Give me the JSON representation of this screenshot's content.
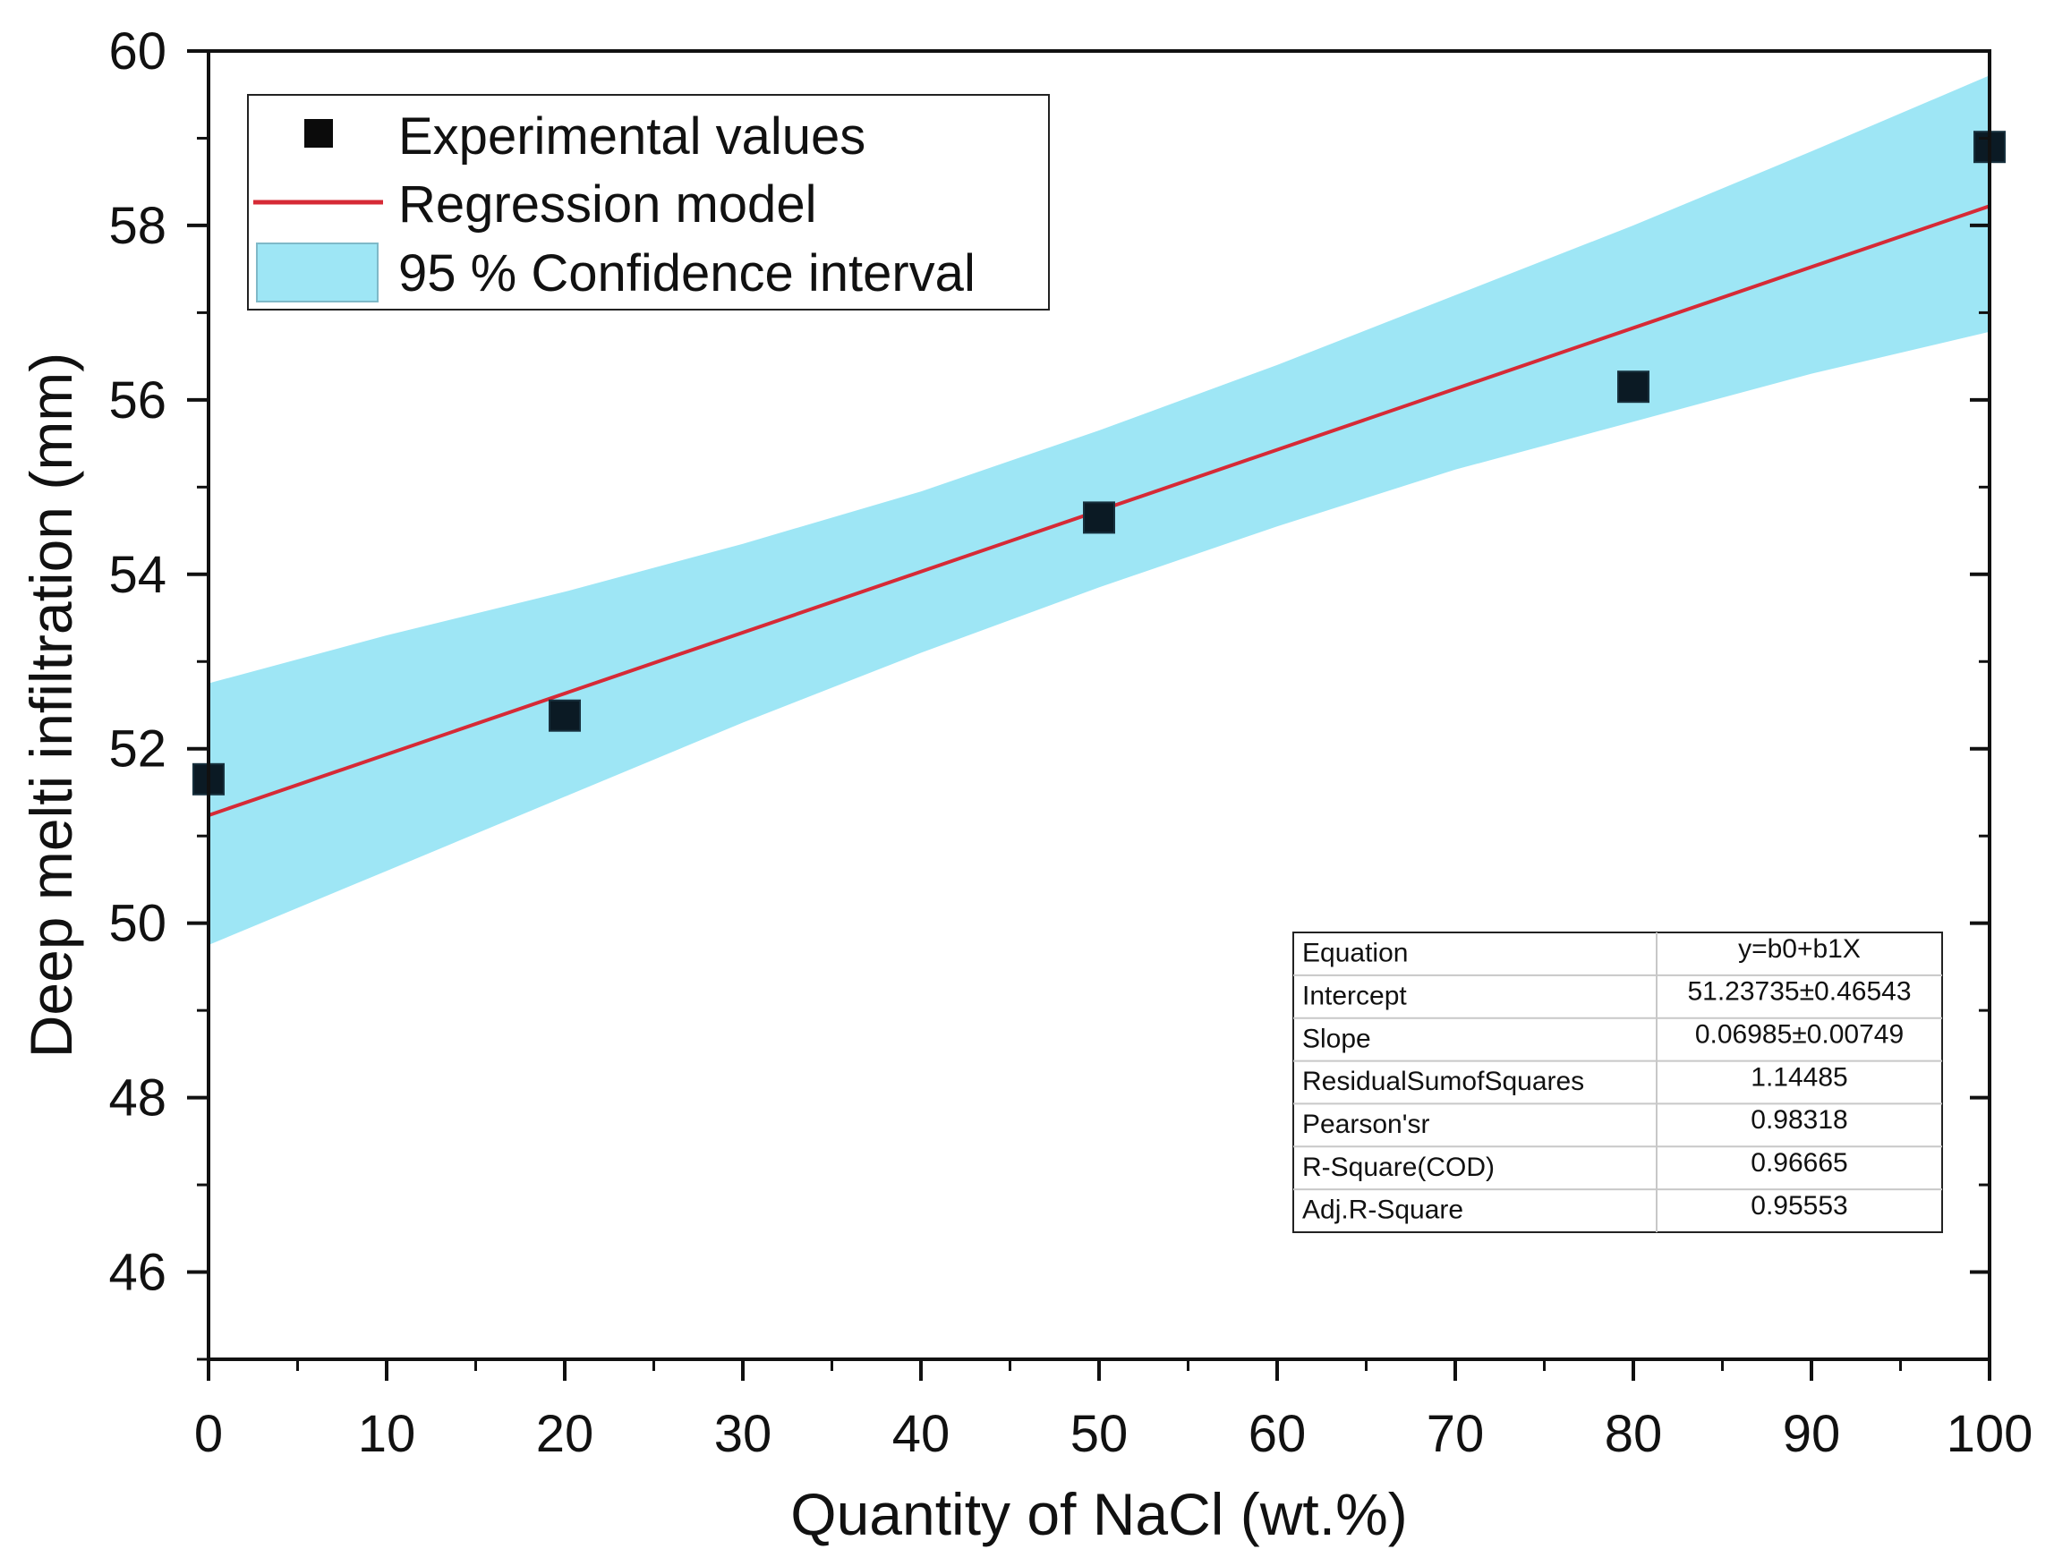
{
  "chart_data": {
    "type": "scatter",
    "title": "",
    "xlabel": "Quantity of NaCl (wt.%)",
    "ylabel": "Deep melti infiltration (mm)",
    "xlim": [
      0,
      100
    ],
    "ylim": [
      45,
      60
    ],
    "x_ticks": [
      0,
      10,
      20,
      30,
      40,
      50,
      60,
      70,
      80,
      90,
      100
    ],
    "x_tick_labels": [
      "0",
      "10",
      "20",
      "30",
      "40",
      "50",
      "60",
      "70",
      "80",
      "90",
      "100"
    ],
    "y_ticks": [
      46,
      48,
      50,
      52,
      54,
      56,
      58,
      60
    ],
    "y_tick_labels": [
      "46",
      "48",
      "50",
      "52",
      "54",
      "56",
      "58",
      "60"
    ],
    "grid": false,
    "legend_position": "top-left",
    "series": [
      {
        "name": "Experimental values",
        "kind": "scatter",
        "color": "#0b1a24",
        "x": [
          0,
          20,
          50,
          80,
          100
        ],
        "y": [
          51.65,
          52.38,
          54.65,
          56.15,
          58.9
        ]
      },
      {
        "name": "Regression model",
        "kind": "line",
        "color": "#d62a36",
        "x": [
          0,
          100
        ],
        "y": [
          51.23735,
          58.22235
        ]
      },
      {
        "name": "95 % Confidence interval",
        "kind": "band",
        "color": "#9ee6f5",
        "x": [
          0,
          10,
          20,
          30,
          40,
          50,
          60,
          70,
          80,
          90,
          100
        ],
        "lower": [
          49.75,
          50.6,
          51.45,
          52.3,
          53.1,
          53.85,
          54.55,
          55.2,
          55.75,
          56.3,
          56.78
        ],
        "upper": [
          52.75,
          53.3,
          53.8,
          54.35,
          54.95,
          55.65,
          56.4,
          57.2,
          58.0,
          58.85,
          59.72
        ]
      }
    ],
    "legend": [
      {
        "label": "Experimental values",
        "symbol": "square"
      },
      {
        "label": "Regression model",
        "symbol": "line"
      },
      {
        "label": "95 % Confidence interval",
        "symbol": "band"
      }
    ],
    "stats_table": [
      [
        "Equation",
        "y=b0+b1X"
      ],
      [
        "Intercept",
        "51.23735±0.46543"
      ],
      [
        "Slope",
        "0.06985±0.00749"
      ],
      [
        "ResidualSumofSquares",
        "1.14485"
      ],
      [
        "Pearson'sr",
        "0.98318"
      ],
      [
        "R-Square(COD)",
        "0.96665"
      ],
      [
        "Adj.R-Square",
        "0.95553"
      ]
    ]
  }
}
